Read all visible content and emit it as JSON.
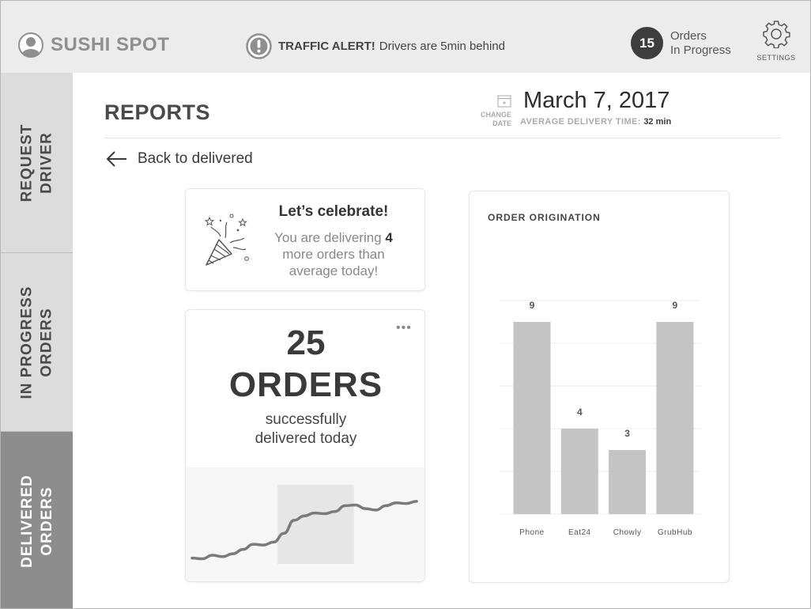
{
  "header": {
    "brand": "SUSHI SPOT",
    "alert_title": "TRAFFIC ALERT!",
    "alert_message": "Drivers are 5min behind",
    "orders_in_progress_count": "15",
    "orders_label_line1": "Orders",
    "orders_label_line2": "In Progress",
    "settings_label": "SETTINGS",
    "icons": {
      "user": "user-icon",
      "alert": "exclamation-icon",
      "settings": "gear-icon"
    }
  },
  "sidebar": {
    "items": [
      {
        "line1": "REQUEST",
        "line2": "DRIVER",
        "active": false
      },
      {
        "line1": "IN PROGRESS",
        "line2": "ORDERS",
        "active": false
      },
      {
        "line1": "DELIVERED",
        "line2": "ORDERS",
        "active": true
      }
    ]
  },
  "main": {
    "title": "REPORTS",
    "change_date_line1": "CHANGE",
    "change_date_line2": "DATE",
    "date": "March 7, 2017",
    "avg_label": "AVERAGE DELIVERY TIME:",
    "avg_value": "32 min",
    "back_label": "Back to delivered"
  },
  "celebrate_card": {
    "heading": "Let’s celebrate!",
    "msg_before": "You are delivering ",
    "msg_count": "4",
    "msg_after": " more orders than average today!",
    "icon": "party-popper-icon"
  },
  "orders_card": {
    "count": "25",
    "word": "ORDERS",
    "sub_line1": "successfully",
    "sub_line2": "delivered today",
    "menu": "•••",
    "trend": [
      0.08,
      0.07,
      0.12,
      0.1,
      0.14,
      0.2,
      0.27,
      0.26,
      0.3,
      0.42,
      0.6,
      0.66,
      0.7,
      0.69,
      0.72,
      0.8,
      0.81,
      0.76,
      0.74,
      0.8,
      0.84,
      0.83,
      0.86
    ],
    "trend_highlight": [
      0.38,
      0.72
    ]
  },
  "origin_card": {
    "title": "ORDER ORIGINATION"
  },
  "chart_data": {
    "type": "bar",
    "title": "ORDER ORIGINATION",
    "categories": [
      "Phone",
      "Eat24",
      "Chowly",
      "GrubHub"
    ],
    "values": [
      9,
      4,
      3,
      9
    ],
    "ylim": [
      0,
      10
    ],
    "grid": true,
    "bar_color": "#c4c4c4"
  },
  "colors": {
    "header_bg": "#ececec",
    "sidebar_bg": "#dcdcdc",
    "sidebar_active_bg": "#8d8d8d",
    "accent_dark": "#3d3d3d"
  }
}
